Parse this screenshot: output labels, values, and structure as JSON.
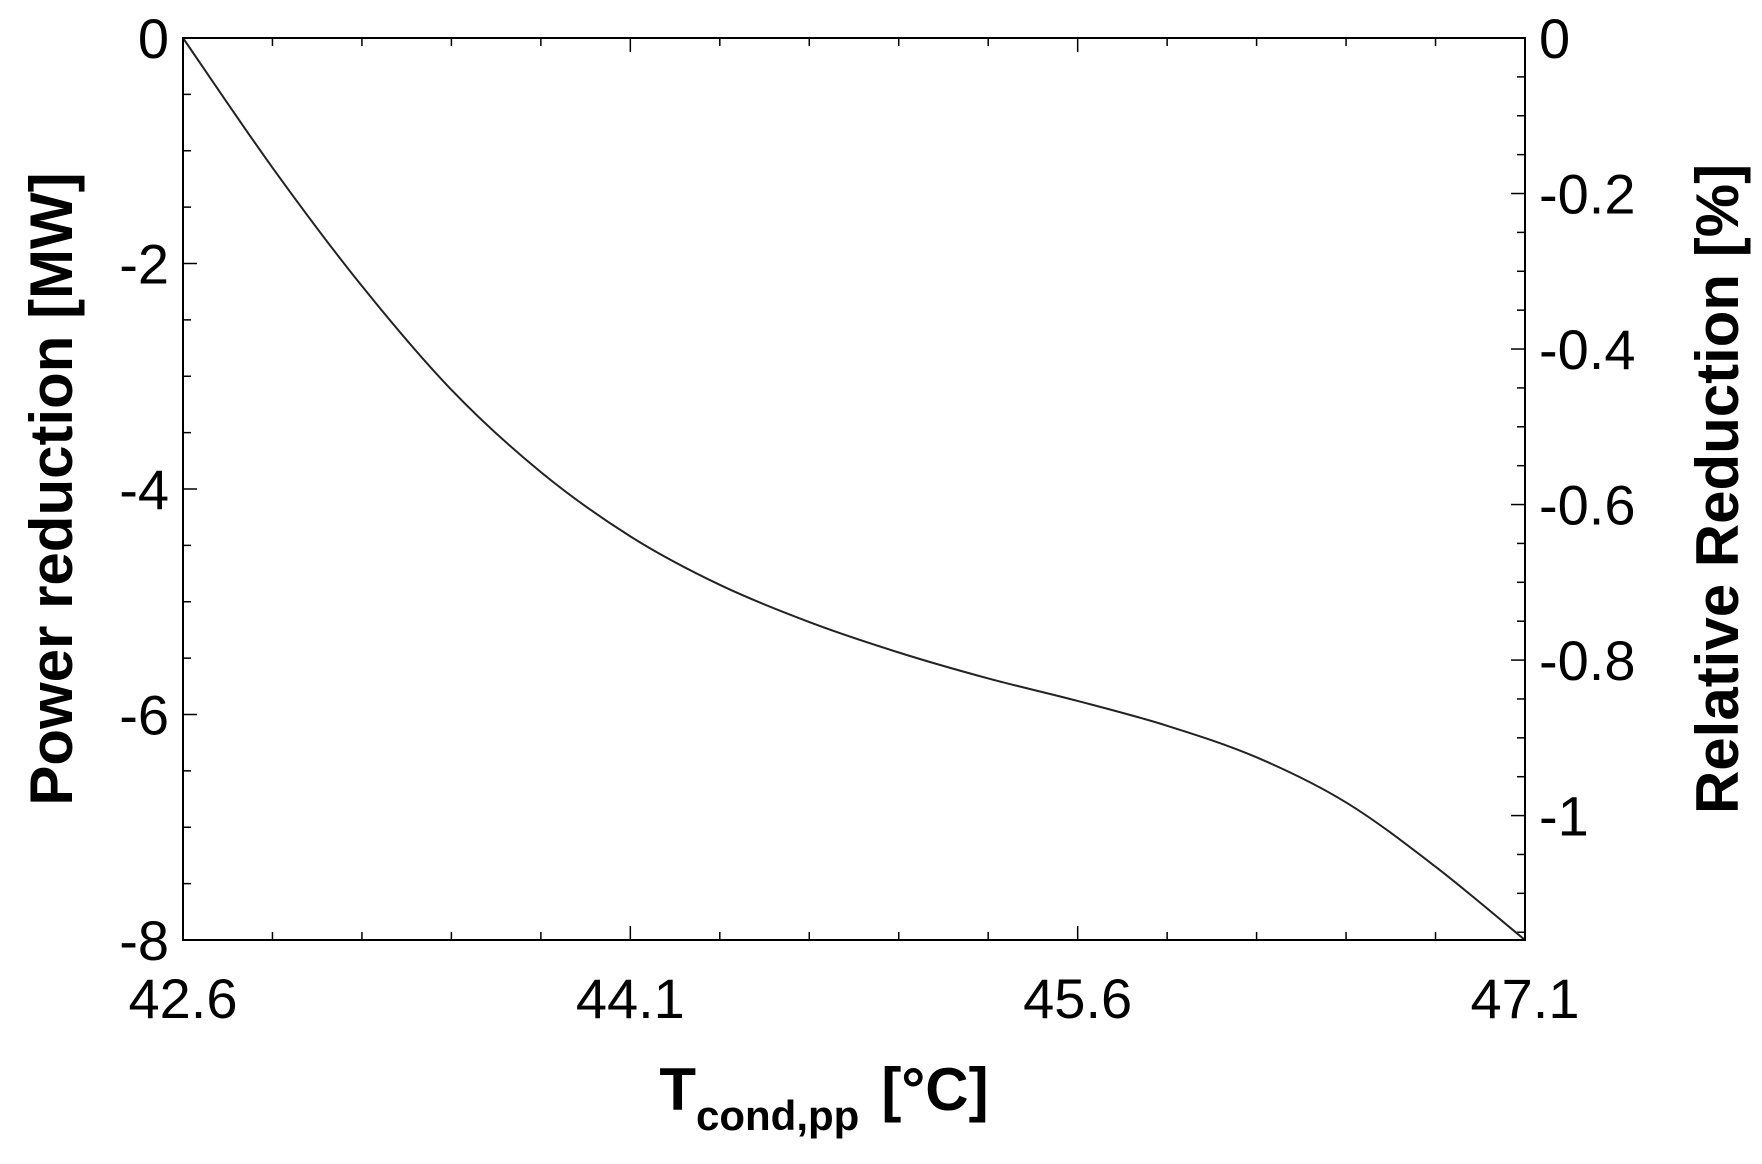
{
  "chart_data": {
    "type": "line",
    "title": "",
    "xlabel": {
      "main": "T",
      "subscript": "cond,pp",
      "unit": "[°C]"
    },
    "ylabel_left": "Power reduction  [MW]",
    "ylabel_right": "Relative Reduction [%]",
    "x_ticks": [
      "42.6",
      "44.1",
      "45.6",
      "47.1"
    ],
    "x_tick_values": [
      42.6,
      44.1,
      45.6,
      47.1
    ],
    "y_left_ticks": [
      "0",
      "-2",
      "-4",
      "-6",
      "-8"
    ],
    "y_left_tick_values": [
      0,
      -2,
      -4,
      -6,
      -8
    ],
    "y_right_ticks": [
      "0",
      "-0.2",
      "-0.4",
      "-0.6",
      "-0.8",
      "-1"
    ],
    "y_right_tick_values": [
      0,
      -0.2,
      -0.4,
      -0.6,
      -0.8,
      -1.0
    ],
    "xlim": [
      42.6,
      47.1
    ],
    "ylim_left": [
      -8,
      0
    ],
    "ylim_right": [
      -1.16,
      0
    ],
    "grid": false,
    "legend": "none",
    "line_color": "#222222",
    "series": [
      {
        "x": [
          42.6,
          42.9,
          43.2,
          43.5,
          43.8,
          44.1,
          44.4,
          44.7,
          45.0,
          45.3,
          45.6,
          45.9,
          46.2,
          46.5,
          46.8,
          47.1
        ],
        "y": [
          0.0,
          -1.15,
          -2.2,
          -3.12,
          -3.85,
          -4.42,
          -4.85,
          -5.18,
          -5.45,
          -5.68,
          -5.88,
          -6.1,
          -6.38,
          -6.78,
          -7.35,
          -8.0
        ]
      }
    ]
  }
}
